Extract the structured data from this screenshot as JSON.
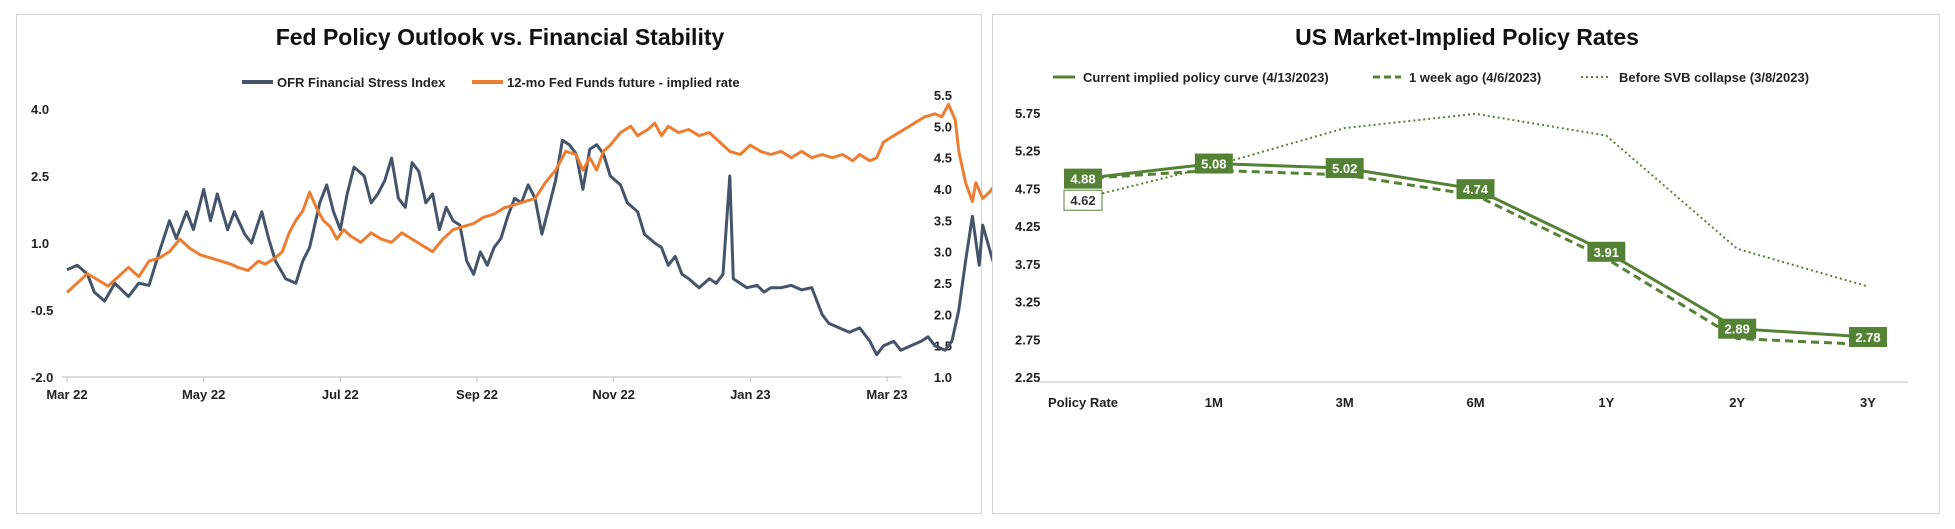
{
  "chart_data": [
    {
      "type": "line",
      "title": "Fed Policy Outlook vs. Financial Stability",
      "x_ticks": [
        "Mar 22",
        "May 22",
        "Jul 22",
        "Sep 22",
        "Nov 22",
        "Jan 23",
        "Mar 23"
      ],
      "y_left": {
        "ticks": [
          "4.0",
          "2.5",
          "1.0",
          "-0.5",
          "-2.0"
        ],
        "min": -2.0,
        "max": 4.0
      },
      "y_right": {
        "ticks": [
          "5.5",
          "5.0",
          "4.5",
          "4.0",
          "3.5",
          "3.0",
          "2.5",
          "2.0",
          "1.5",
          "1.0"
        ],
        "min": 1.0,
        "max": 5.5
      },
      "legend_position": "top",
      "grid": false,
      "series": [
        {
          "name": "OFR Financial Stress Index",
          "axis": "left",
          "color": "#44546a",
          "points": [
            [
              0,
              0.4
            ],
            [
              0.15,
              0.5
            ],
            [
              0.3,
              0.3
            ],
            [
              0.4,
              -0.1
            ],
            [
              0.55,
              -0.3
            ],
            [
              0.7,
              0.1
            ],
            [
              0.9,
              -0.2
            ],
            [
              1.05,
              0.1
            ],
            [
              1.2,
              0.05
            ],
            [
              1.35,
              0.8
            ],
            [
              1.5,
              1.5
            ],
            [
              1.6,
              1.1
            ],
            [
              1.75,
              1.7
            ],
            [
              1.85,
              1.3
            ],
            [
              2.0,
              2.2
            ],
            [
              2.1,
              1.5
            ],
            [
              2.2,
              2.1
            ],
            [
              2.35,
              1.3
            ],
            [
              2.45,
              1.7
            ],
            [
              2.6,
              1.2
            ],
            [
              2.7,
              1.0
            ],
            [
              2.85,
              1.7
            ],
            [
              2.95,
              1.1
            ],
            [
              3.05,
              0.6
            ],
            [
              3.2,
              0.2
            ],
            [
              3.35,
              0.1
            ],
            [
              3.45,
              0.6
            ],
            [
              3.55,
              0.9
            ],
            [
              3.7,
              1.9
            ],
            [
              3.8,
              2.3
            ],
            [
              3.9,
              1.7
            ],
            [
              4.0,
              1.3
            ],
            [
              4.1,
              2.1
            ],
            [
              4.2,
              2.7
            ],
            [
              4.35,
              2.5
            ],
            [
              4.45,
              1.9
            ],
            [
              4.55,
              2.1
            ],
            [
              4.65,
              2.4
            ],
            [
              4.75,
              2.9
            ],
            [
              4.85,
              2.0
            ],
            [
              4.95,
              1.8
            ],
            [
              5.05,
              2.8
            ],
            [
              5.15,
              2.6
            ],
            [
              5.25,
              1.9
            ],
            [
              5.35,
              2.1
            ],
            [
              5.45,
              1.3
            ],
            [
              5.55,
              1.8
            ],
            [
              5.65,
              1.5
            ],
            [
              5.75,
              1.4
            ],
            [
              5.85,
              0.6
            ],
            [
              5.95,
              0.3
            ],
            [
              6.05,
              0.8
            ],
            [
              6.15,
              0.5
            ],
            [
              6.25,
              0.9
            ],
            [
              6.35,
              1.1
            ],
            [
              6.45,
              1.6
            ],
            [
              6.55,
              2.0
            ],
            [
              6.65,
              1.9
            ],
            [
              6.75,
              2.3
            ],
            [
              6.85,
              2.0
            ],
            [
              6.95,
              1.2
            ],
            [
              7.05,
              1.8
            ],
            [
              7.15,
              2.4
            ],
            [
              7.25,
              3.3
            ],
            [
              7.35,
              3.2
            ],
            [
              7.45,
              3.0
            ],
            [
              7.55,
              2.2
            ],
            [
              7.65,
              3.1
            ],
            [
              7.75,
              3.2
            ],
            [
              7.85,
              3.0
            ],
            [
              7.95,
              2.5
            ],
            [
              8.1,
              2.3
            ],
            [
              8.2,
              1.9
            ],
            [
              8.35,
              1.7
            ],
            [
              8.45,
              1.2
            ],
            [
              8.6,
              1.0
            ],
            [
              8.7,
              0.9
            ],
            [
              8.8,
              0.5
            ],
            [
              8.9,
              0.7
            ],
            [
              9.0,
              0.3
            ],
            [
              9.1,
              0.2
            ],
            [
              9.25,
              0.0
            ],
            [
              9.4,
              0.2
            ],
            [
              9.5,
              0.1
            ],
            [
              9.6,
              0.3
            ],
            [
              9.7,
              2.5
            ],
            [
              9.75,
              0.2
            ],
            [
              9.85,
              0.1
            ],
            [
              9.95,
              0.0
            ],
            [
              10.1,
              0.05
            ],
            [
              10.2,
              -0.1
            ],
            [
              10.3,
              0.0
            ],
            [
              10.45,
              0.0
            ],
            [
              10.6,
              0.05
            ],
            [
              10.75,
              -0.05
            ],
            [
              10.9,
              0.0
            ],
            [
              11.05,
              -0.6
            ],
            [
              11.15,
              -0.8
            ],
            [
              11.3,
              -0.9
            ],
            [
              11.45,
              -1.0
            ],
            [
              11.6,
              -0.9
            ],
            [
              11.75,
              -1.2
            ],
            [
              11.85,
              -1.5
            ],
            [
              11.95,
              -1.3
            ],
            [
              12.1,
              -1.2
            ],
            [
              12.2,
              -1.4
            ],
            [
              12.35,
              -1.3
            ],
            [
              12.5,
              -1.2
            ],
            [
              12.6,
              -1.1
            ],
            [
              12.7,
              -1.3
            ],
            [
              12.85,
              -1.4
            ],
            [
              12.95,
              -1.2
            ],
            [
              13.05,
              -0.5
            ],
            [
              13.15,
              0.6
            ],
            [
              13.25,
              1.6
            ],
            [
              13.35,
              0.5
            ],
            [
              13.4,
              1.4
            ],
            [
              13.55,
              0.6
            ],
            [
              13.65,
              0.4
            ],
            [
              13.75,
              -0.2
            ],
            [
              13.85,
              0.2
            ],
            [
              13.95,
              -0.1
            ],
            [
              14.05,
              -0.3
            ],
            [
              14.15,
              -0.6
            ]
          ]
        },
        {
          "name": "12-mo Fed Funds future - implied rate",
          "axis": "right",
          "color": "#ed7d31",
          "points": [
            [
              0,
              2.35
            ],
            [
              0.15,
              2.5
            ],
            [
              0.3,
              2.65
            ],
            [
              0.45,
              2.55
            ],
            [
              0.6,
              2.45
            ],
            [
              0.75,
              2.6
            ],
            [
              0.9,
              2.75
            ],
            [
              1.05,
              2.6
            ],
            [
              1.2,
              2.85
            ],
            [
              1.35,
              2.9
            ],
            [
              1.5,
              3.0
            ],
            [
              1.65,
              3.2
            ],
            [
              1.8,
              3.05
            ],
            [
              1.95,
              2.95
            ],
            [
              2.1,
              2.9
            ],
            [
              2.25,
              2.85
            ],
            [
              2.4,
              2.8
            ],
            [
              2.5,
              2.75
            ],
            [
              2.65,
              2.7
            ],
            [
              2.8,
              2.85
            ],
            [
              2.9,
              2.8
            ],
            [
              3.05,
              2.9
            ],
            [
              3.15,
              3.0
            ],
            [
              3.25,
              3.3
            ],
            [
              3.35,
              3.5
            ],
            [
              3.45,
              3.65
            ],
            [
              3.55,
              3.95
            ],
            [
              3.65,
              3.7
            ],
            [
              3.75,
              3.5
            ],
            [
              3.85,
              3.4
            ],
            [
              3.95,
              3.2
            ],
            [
              4.05,
              3.35
            ],
            [
              4.15,
              3.25
            ],
            [
              4.3,
              3.15
            ],
            [
              4.45,
              3.3
            ],
            [
              4.6,
              3.2
            ],
            [
              4.75,
              3.15
            ],
            [
              4.9,
              3.3
            ],
            [
              5.05,
              3.2
            ],
            [
              5.2,
              3.1
            ],
            [
              5.35,
              3.0
            ],
            [
              5.5,
              3.2
            ],
            [
              5.65,
              3.35
            ],
            [
              5.8,
              3.4
            ],
            [
              5.95,
              3.45
            ],
            [
              6.1,
              3.55
            ],
            [
              6.25,
              3.6
            ],
            [
              6.4,
              3.7
            ],
            [
              6.55,
              3.75
            ],
            [
              6.7,
              3.8
            ],
            [
              6.85,
              3.85
            ],
            [
              7.0,
              4.1
            ],
            [
              7.15,
              4.3
            ],
            [
              7.3,
              4.6
            ],
            [
              7.45,
              4.55
            ],
            [
              7.55,
              4.3
            ],
            [
              7.65,
              4.5
            ],
            [
              7.75,
              4.3
            ],
            [
              7.85,
              4.6
            ],
            [
              7.95,
              4.7
            ],
            [
              8.1,
              4.9
            ],
            [
              8.25,
              5.0
            ],
            [
              8.35,
              4.85
            ],
            [
              8.5,
              4.95
            ],
            [
              8.6,
              5.05
            ],
            [
              8.7,
              4.85
            ],
            [
              8.8,
              5.0
            ],
            [
              8.95,
              4.9
            ],
            [
              9.1,
              4.95
            ],
            [
              9.25,
              4.85
            ],
            [
              9.4,
              4.9
            ],
            [
              9.55,
              4.75
            ],
            [
              9.7,
              4.6
            ],
            [
              9.85,
              4.55
            ],
            [
              10.0,
              4.7
            ],
            [
              10.15,
              4.6
            ],
            [
              10.3,
              4.55
            ],
            [
              10.45,
              4.6
            ],
            [
              10.6,
              4.5
            ],
            [
              10.75,
              4.6
            ],
            [
              10.9,
              4.5
            ],
            [
              11.05,
              4.55
            ],
            [
              11.2,
              4.5
            ],
            [
              11.35,
              4.55
            ],
            [
              11.5,
              4.45
            ],
            [
              11.6,
              4.55
            ],
            [
              11.75,
              4.45
            ],
            [
              11.85,
              4.5
            ],
            [
              11.95,
              4.75
            ],
            [
              12.1,
              4.85
            ],
            [
              12.25,
              4.95
            ],
            [
              12.4,
              5.05
            ],
            [
              12.55,
              5.15
            ],
            [
              12.7,
              5.2
            ],
            [
              12.8,
              5.15
            ],
            [
              12.9,
              5.35
            ],
            [
              13.0,
              5.1
            ],
            [
              13.05,
              4.6
            ],
            [
              13.15,
              4.1
            ],
            [
              13.25,
              3.8
            ],
            [
              13.3,
              4.1
            ],
            [
              13.4,
              3.85
            ],
            [
              13.5,
              3.95
            ],
            [
              13.6,
              4.1
            ],
            [
              13.7,
              3.9
            ],
            [
              13.8,
              4.05
            ],
            [
              13.9,
              4.15
            ],
            [
              14.0,
              3.85
            ],
            [
              14.1,
              4.1
            ],
            [
              14.2,
              4.0
            ]
          ]
        }
      ]
    },
    {
      "type": "line",
      "title": "US Market-Implied Policy Rates",
      "categories": [
        "Policy Rate",
        "1M",
        "3M",
        "6M",
        "1Y",
        "2Y",
        "3Y"
      ],
      "y": {
        "ticks": [
          "5.75",
          "5.25",
          "4.75",
          "4.25",
          "3.75",
          "3.25",
          "2.75",
          "2.25"
        ],
        "min": 2.25,
        "max": 5.75
      },
      "legend_position": "top",
      "grid": false,
      "series": [
        {
          "name": "Current implied policy curve (4/13/2023)",
          "style": "solid",
          "color": "#548235",
          "values": [
            4.88,
            5.08,
            5.02,
            4.74,
            3.91,
            2.89,
            2.78
          ]
        },
        {
          "name": "1 week ago (4/6/2023)",
          "style": "dashed",
          "color": "#548235",
          "values": [
            4.88,
            4.99,
            4.93,
            4.66,
            3.82,
            2.76,
            2.68
          ]
        },
        {
          "name": "Before SVB collapse (3/8/2023)",
          "style": "dotted",
          "color": "#548235",
          "values": [
            4.62,
            5.05,
            5.55,
            5.74,
            5.45,
            3.95,
            3.45
          ]
        }
      ],
      "data_labels": {
        "current": [
          "4.88",
          "5.08",
          "5.02",
          "4.74",
          "3.91",
          "2.89",
          "2.78"
        ],
        "before_svb": [
          "4.62"
        ]
      }
    }
  ]
}
